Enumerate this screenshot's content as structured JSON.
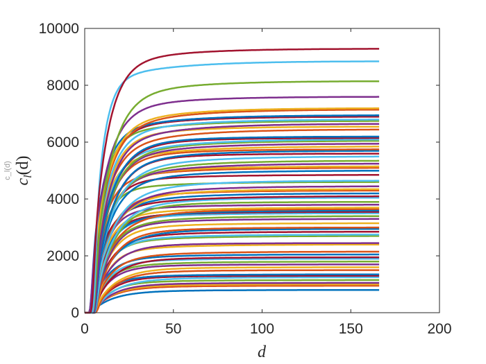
{
  "chart_data": {
    "type": "line",
    "xlabel": "d",
    "ylabel": "c_l(d)",
    "ylabel_display": "c",
    "ylabel_sub": "l",
    "ylabel_arg": "(d)",
    "xlim": [
      0,
      200
    ],
    "ylim": [
      0,
      10000
    ],
    "x_ticks": [
      "0",
      "50",
      "100",
      "150",
      "200"
    ],
    "y_ticks": [
      "0",
      "2000",
      "4000",
      "6000",
      "8000",
      "10000"
    ],
    "grid": false,
    "x_end": 166,
    "palette": [
      "#0072BD",
      "#D95319",
      "#EDB120",
      "#7E2F8E",
      "#77AC30",
      "#4DBEEE",
      "#A2142F"
    ],
    "series_final_values": [
      9290,
      8850,
      8150,
      7600,
      7200,
      7150,
      6950,
      6900,
      6800,
      6750,
      6650,
      6550,
      6450,
      6200,
      6150,
      6100,
      6050,
      5950,
      5850,
      5750,
      5700,
      5600,
      5500,
      5350,
      5250,
      5150,
      5100,
      5000,
      4850,
      4650,
      4600,
      4450,
      4350,
      4300,
      4200,
      4100,
      4050,
      3900,
      3800,
      3700,
      3650,
      3600,
      3550,
      3500,
      3400,
      3300,
      3150,
      3000,
      2950,
      2850,
      2750,
      2700,
      2450,
      2400,
      2150,
      2050,
      1950,
      1900,
      1800,
      1700,
      1600,
      1500,
      1350,
      1300,
      1250,
      1150,
      1050,
      1000,
      950,
      800
    ]
  }
}
